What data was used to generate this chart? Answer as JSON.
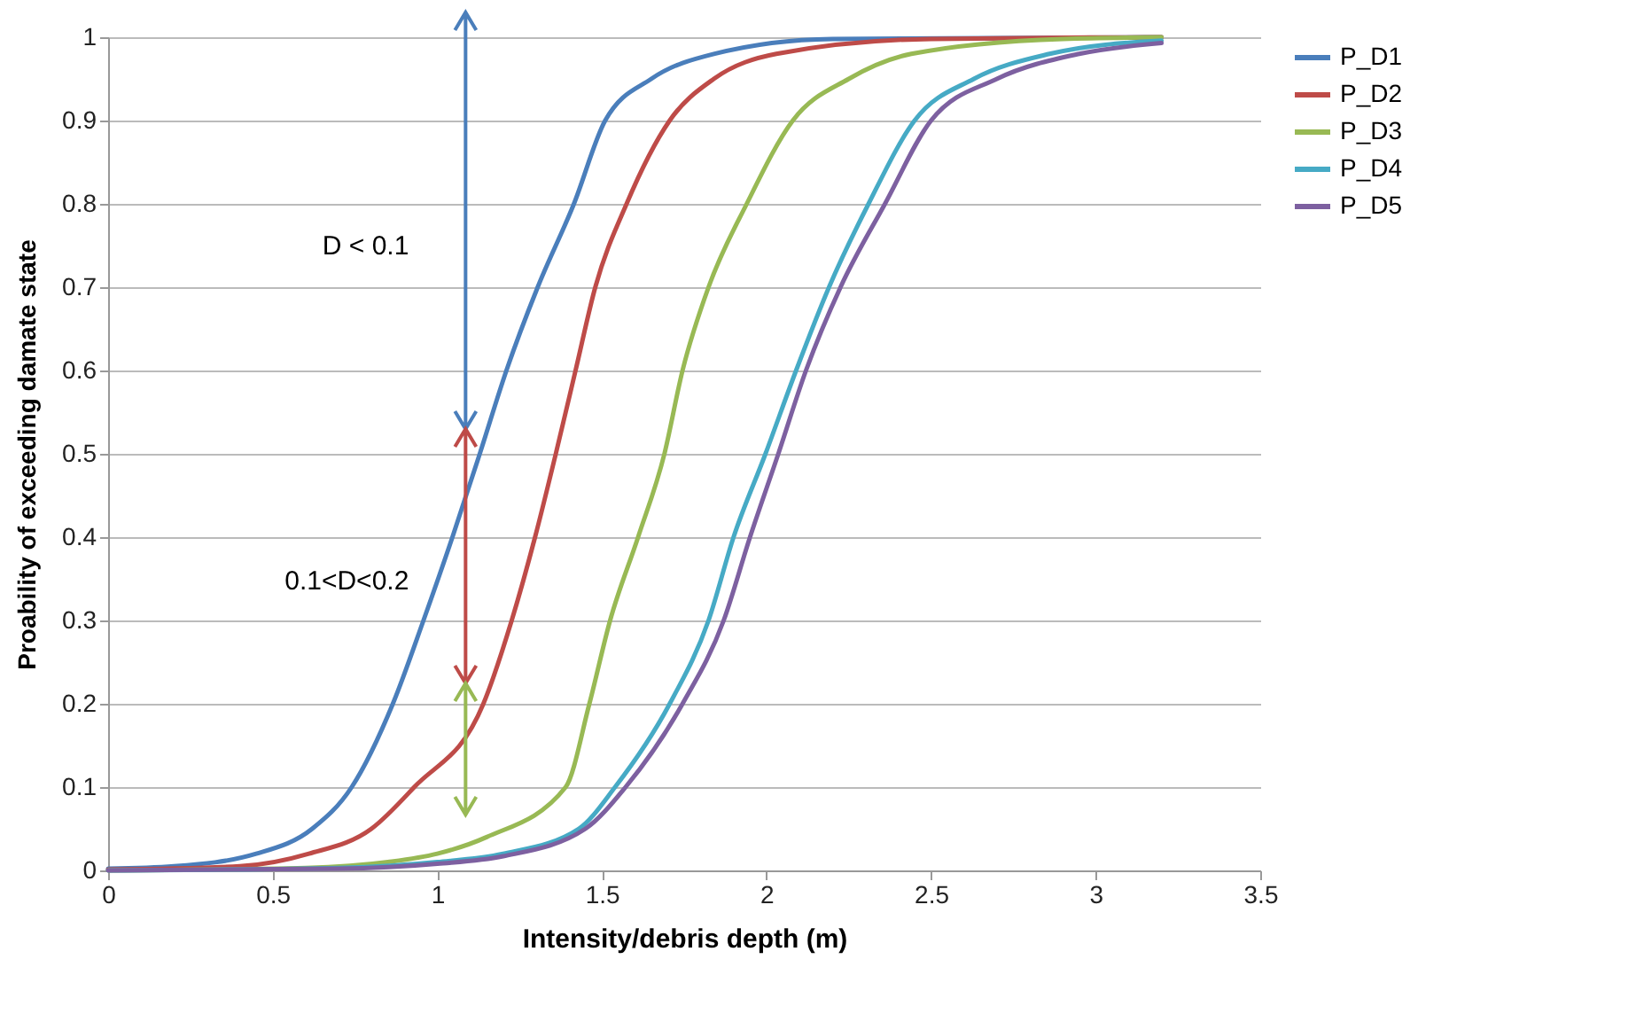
{
  "chart_data": {
    "type": "line",
    "xlabel": "Intensity/debris depth (m)",
    "ylabel": "Proability of exceeding damate state",
    "xlim": [
      0,
      3.5
    ],
    "xticks": [
      0,
      0.5,
      1,
      1.5,
      2,
      2.5,
      3,
      3.5
    ],
    "ylim": [
      0,
      1
    ],
    "yticks": [
      0,
      0.1,
      0.2,
      0.3,
      0.4,
      0.5,
      0.6,
      0.7,
      0.8,
      0.9,
      1
    ],
    "grid": "y",
    "legend": "right",
    "marker": "none",
    "line_style": "solid",
    "annotations": [
      "D < 0.1",
      "0.1<D<0.2"
    ],
    "series": [
      {
        "name": "P_D1",
        "color": "#4a7ebb",
        "x": [
          0,
          0.2,
          0.45,
          0.62,
          0.74,
          0.865,
          0.958,
          1.046,
          1.129,
          1.21,
          1.305,
          1.415,
          1.51,
          1.65,
          1.84,
          2.2,
          3.2
        ],
        "values": [
          0.002,
          0.005,
          0.02,
          0.05,
          0.1,
          0.2,
          0.3,
          0.4,
          0.5,
          0.6,
          0.7,
          0.8,
          0.9,
          0.95,
          0.98,
          0.998,
          1
        ]
      },
      {
        "name": "P_D2",
        "color": "#be4b48",
        "x": [
          0,
          0.4,
          0.61,
          0.8,
          0.93,
          1.14,
          1.226,
          1.297,
          1.36,
          1.42,
          1.48,
          1.575,
          1.706,
          1.84,
          2.03,
          2.5,
          3.2
        ],
        "values": [
          0.001,
          0.005,
          0.02,
          0.05,
          0.1,
          0.2,
          0.3,
          0.4,
          0.5,
          0.6,
          0.7,
          0.8,
          0.9,
          0.95,
          0.98,
          0.998,
          1
        ]
      },
      {
        "name": "P_D3",
        "color": "#98b954",
        "x": [
          0,
          0.6,
          0.85,
          1.0,
          1.15,
          1.39,
          1.462,
          1.525,
          1.61,
          1.69,
          1.745,
          1.824,
          1.94,
          2.08,
          2.25,
          2.44,
          2.9,
          3.2
        ],
        "values": [
          0,
          0.003,
          0.01,
          0.02,
          0.04,
          0.1,
          0.2,
          0.3,
          0.4,
          0.5,
          0.6,
          0.7,
          0.8,
          0.9,
          0.95,
          0.98,
          0.998,
          1
        ]
      },
      {
        "name": "P_D4",
        "color": "#46aac5",
        "x": [
          0,
          0.7,
          1.0,
          1.2,
          1.43,
          1.54,
          1.706,
          1.824,
          1.9,
          1.997,
          2.09,
          2.19,
          2.31,
          2.45,
          2.63,
          2.86,
          3.2
        ],
        "values": [
          0,
          0.003,
          0.01,
          0.02,
          0.05,
          0.1,
          0.2,
          0.3,
          0.4,
          0.5,
          0.6,
          0.7,
          0.8,
          0.9,
          0.95,
          0.98,
          0.996
        ]
      },
      {
        "name": "P_D5",
        "color": "#7d60a0",
        "x": [
          0,
          0.7,
          1.0,
          1.2,
          1.45,
          1.572,
          1.745,
          1.87,
          1.95,
          2.036,
          2.12,
          2.225,
          2.36,
          2.5,
          2.7,
          2.95,
          3.2
        ],
        "values": [
          0,
          0.002,
          0.008,
          0.017,
          0.05,
          0.1,
          0.2,
          0.3,
          0.4,
          0.5,
          0.6,
          0.7,
          0.8,
          0.9,
          0.95,
          0.98,
          0.993
        ]
      }
    ]
  }
}
